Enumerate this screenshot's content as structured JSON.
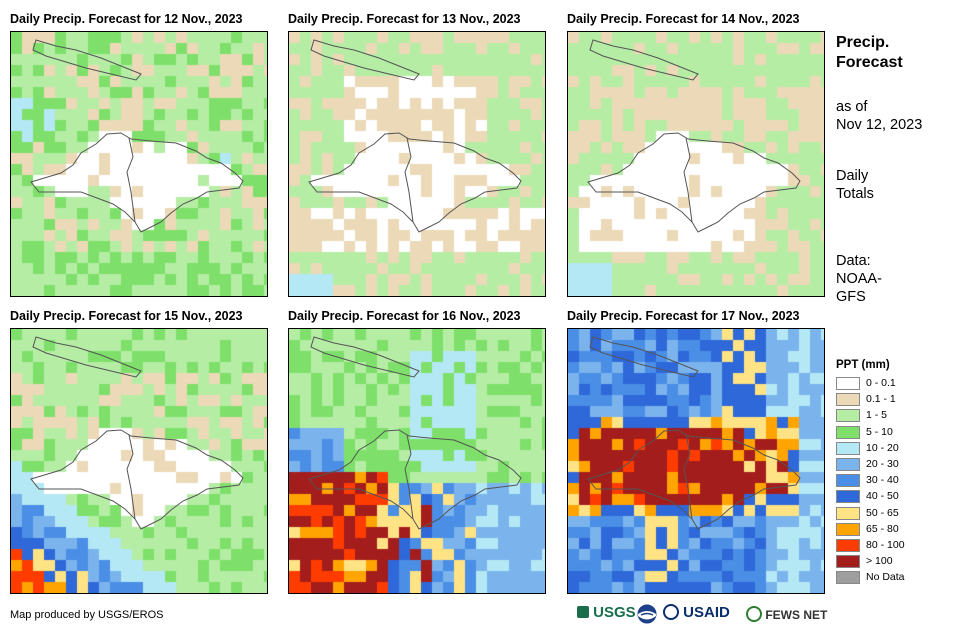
{
  "panels": [
    {
      "title": "Daily Precip. Forecast for 12 Nov., 2023"
    },
    {
      "title": "Daily Precip. Forecast for 13 Nov., 2023"
    },
    {
      "title": "Daily Precip. Forecast for 14 Nov., 2023"
    },
    {
      "title": "Daily Precip. Forecast for 15 Nov., 2023"
    },
    {
      "title": "Daily Precip. Forecast for 16 Nov., 2023"
    },
    {
      "title": "Daily Precip. Forecast for 17 Nov., 2023"
    }
  ],
  "sidebar": {
    "title_line1": "Precip.",
    "title_line2": "Forecast",
    "asof_line1": "as of",
    "asof_line2": "Nov 12, 2023",
    "totals_line1": "Daily",
    "totals_line2": "Totals",
    "data_line1": "Data:",
    "data_line2": "NOAA-",
    "data_line3": "GFS"
  },
  "legend": {
    "title": "PPT (mm)",
    "items": [
      {
        "label": "0 - 0.1",
        "color": "#ffffff"
      },
      {
        "label": "0.1 - 1",
        "color": "#ecd9b8"
      },
      {
        "label": "1 - 5",
        "color": "#b5eda5"
      },
      {
        "label": "5 - 10",
        "color": "#7ee06a"
      },
      {
        "label": "10 - 20",
        "color": "#b4e8f5"
      },
      {
        "label": "20 - 30",
        "color": "#7bb4ed"
      },
      {
        "label": "30 - 40",
        "color": "#4a8ee6"
      },
      {
        "label": "40 - 50",
        "color": "#2f68d9"
      },
      {
        "label": "50 - 65",
        "color": "#ffe385"
      },
      {
        "label": "65 - 80",
        "color": "#ffa400"
      },
      {
        "label": "80 - 100",
        "color": "#ff3c00"
      },
      {
        "label": "> 100",
        "color": "#a41d1d"
      },
      {
        "label": "No Data",
        "color": "#9e9e9e"
      }
    ]
  },
  "footer": {
    "credit": "Map produced by USGS/EROS",
    "logos": [
      "USGS",
      "NOAA",
      "USAID",
      "FEWS NET"
    ]
  }
}
